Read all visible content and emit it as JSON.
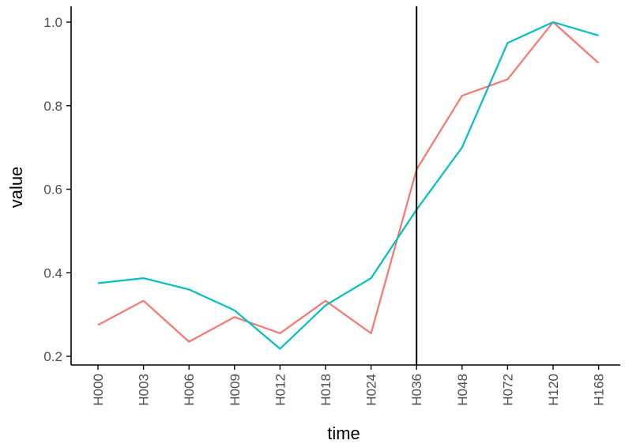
{
  "chart_data": {
    "type": "line",
    "title": "",
    "xlabel": "time",
    "ylabel": "value",
    "categories": [
      "H000",
      "H003",
      "H006",
      "H009",
      "H012",
      "H018",
      "H024",
      "H036",
      "H048",
      "H072",
      "H120",
      "H168"
    ],
    "ylim": [
      0.19,
      1.04
    ],
    "yticks": [
      0.2,
      0.4,
      0.6,
      0.8,
      1.0
    ],
    "ytick_labels": [
      "0.2",
      "0.4",
      "0.6",
      "0.8",
      "1.0"
    ],
    "vline_at": "H036",
    "grid": false,
    "legend": "none",
    "series": [
      {
        "color": "#F8766D",
        "values": [
          0.275,
          0.333,
          0.235,
          0.294,
          0.255,
          0.333,
          0.255,
          0.647,
          0.824,
          0.863,
          1.0,
          0.902
        ]
      },
      {
        "color": "#00BFC4",
        "values": [
          0.375,
          0.387,
          0.36,
          0.31,
          0.218,
          0.322,
          0.387,
          0.551,
          0.7,
          0.95,
          1.0,
          0.968
        ]
      }
    ]
  }
}
